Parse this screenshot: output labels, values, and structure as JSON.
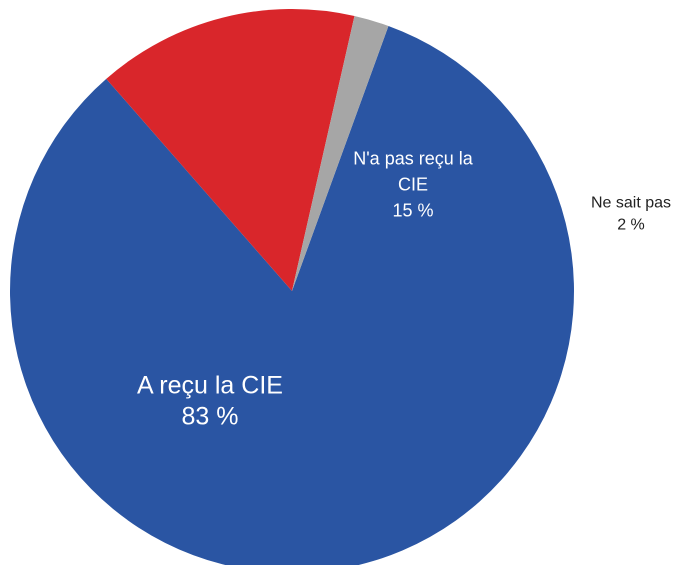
{
  "chart_data": {
    "type": "pie",
    "title": "",
    "slices": [
      {
        "label_lines": [
          "A reçu la CIE"
        ],
        "value": 83,
        "value_label": "83 %",
        "color": "#2a55a3",
        "label_color": "#ffffff"
      },
      {
        "label_lines": [
          "N'a pas reçu la",
          "CIE"
        ],
        "value": 15,
        "value_label": "15 %",
        "color": "#d9262b",
        "label_color": "#ffffff"
      },
      {
        "label_lines": [
          "Ne sait pas"
        ],
        "value": 2,
        "value_label": "2 %",
        "color": "#a6a6a6",
        "label_color": "#222222"
      }
    ],
    "start_angle_deg": 20,
    "direction": "clockwise",
    "label_placement": [
      "inside",
      "inside",
      "outside-right"
    ]
  }
}
